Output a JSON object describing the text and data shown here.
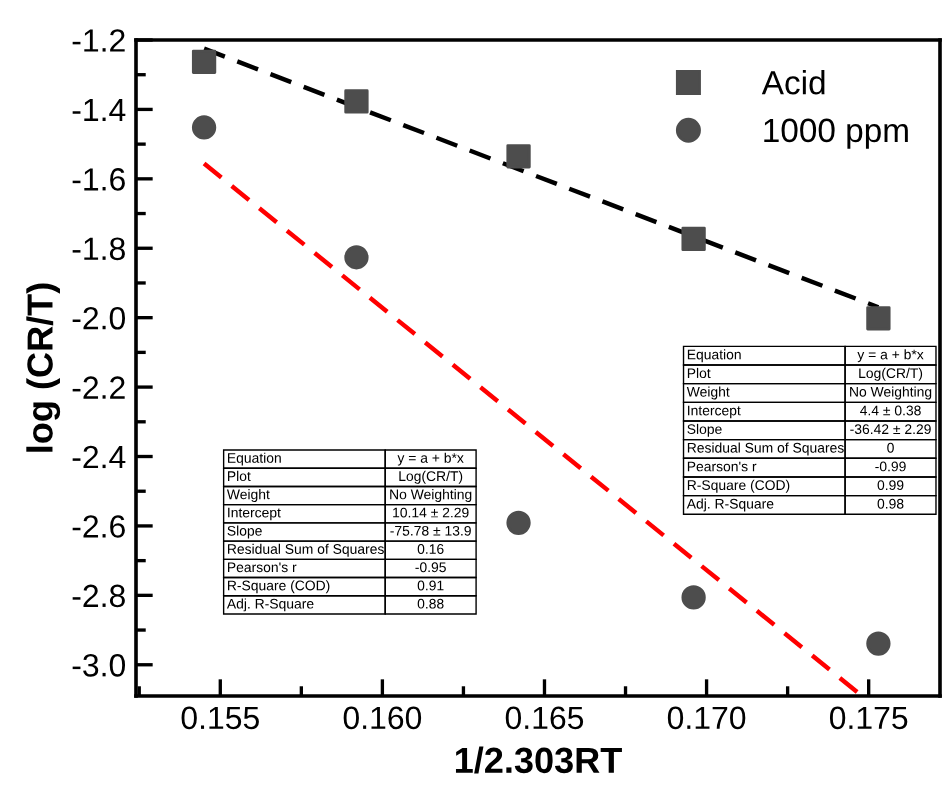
{
  "chart_data": {
    "type": "scatter",
    "xlabel": "1/2.303RT",
    "ylabel": "log (CR/T)",
    "xlim": [
      0.1524,
      0.1772
    ],
    "xticks": [
      0.155,
      {
        "value": 0.16,
        "label": "0.160"
      },
      0.165,
      {
        "value": 0.17,
        "label": "0.170"
      },
      0.175
    ],
    "ylim": [
      -3.09,
      -1.2
    ],
    "yticks": [
      {
        "value": -3,
        "label": "-3.0"
      },
      -2.8,
      -2.6,
      -2.4,
      -2.2,
      {
        "value": -2,
        "label": "-2.0"
      },
      -1.8,
      -1.6,
      -1.4,
      -1.2
    ],
    "grid": false,
    "legend": "top right",
    "series": [
      {
        "name": "Acid",
        "marker": "square",
        "color": "#4d4d4d",
        "x": [
          0.1545,
          0.1592,
          0.1642,
          0.1696,
          0.1753
        ],
        "values": [
          -1.263,
          -1.377,
          -1.535,
          -1.773,
          -2.002
        ]
      },
      {
        "name": "1000 ppm",
        "marker": "circle",
        "color": "#4d4d4d",
        "x": [
          0.1545,
          0.1592,
          0.1642,
          0.1696,
          0.1753
        ],
        "values": [
          -1.452,
          -1.826,
          -2.591,
          -2.806,
          -2.939
        ]
      },
      {
        "type": "line",
        "line_style": "dashed",
        "color": "#000000",
        "x": [
          0.1545,
          0.1753
        ],
        "values": [
          -1.225,
          -1.97
        ]
      },
      {
        "type": "line",
        "line_style": "dashed",
        "color": "#ff0000",
        "x": [
          0.1545,
          0.1748
        ],
        "values": [
          -1.556,
          -3.09
        ]
      }
    ],
    "annotations": [
      "Equation",
      "y = a + b*x",
      "Plot",
      "Log(CR/T)",
      "Weight",
      "No Weighting",
      "Intercept",
      "4.4 ± 0.38",
      "Slope",
      "-36.42 ± 2.29",
      "Residual Sum of Squares",
      "0",
      "Pearson's r",
      "-0.99",
      "R-Square (COD)",
      "0.99",
      "Adj. R-Square",
      "0.98",
      "Equation",
      "y = a + b*x",
      "Plot",
      "Log(CR/T)",
      "Weight",
      "No Weighting",
      "Intercept",
      "10.14 ± 2.29",
      "Slope",
      "-75.78 ± 13.9",
      "Residual Sum of Squares",
      "0.16",
      "Pearson's r",
      "-0.95",
      "R-Square (COD)",
      "0.91",
      "Adj. R-Square",
      "0.88"
    ]
  }
}
